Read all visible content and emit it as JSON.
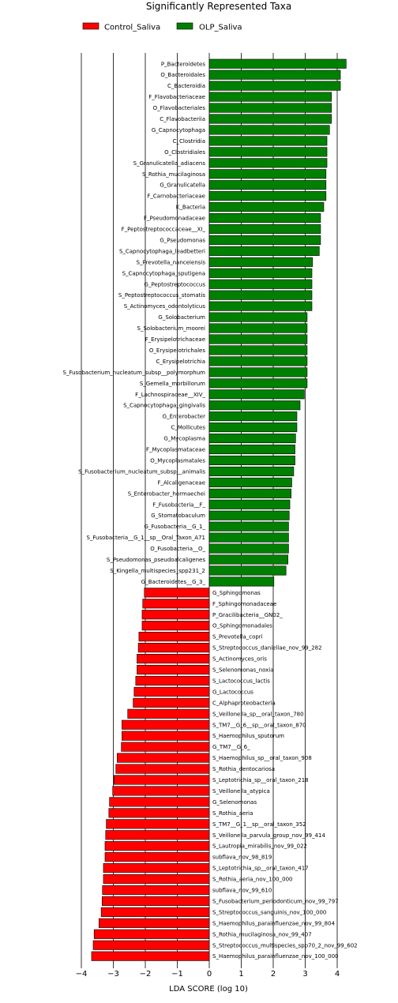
{
  "chart_data": {
    "type": "bar",
    "orientation": "horizontal",
    "title": "Significantly Represented Taxa",
    "xlabel": "LDA SCORE (log 10)",
    "xlim": [
      -4,
      4.4
    ],
    "xticks": [
      "−4",
      "−3",
      "−2",
      "−1",
      "0",
      "1",
      "2",
      "3",
      "4"
    ],
    "grid": "vertical",
    "legend_position": "top-left",
    "series": [
      {
        "name": "OLP_Saliva",
        "color": "#008000",
        "categories": [
          "P_Bacteroidetes",
          "O_Bacteroidales",
          "C_Bacteroidia",
          "F_Flavobacteriaceae",
          "O_Flavobacteriales",
          "C_Flavobacteriia",
          "G_Capnocytophaga",
          "C_Clostridia",
          "O_Clostridiales",
          "S_Granulicatella_adiacens",
          "S_Rothia_mucilaginosa",
          "G_Granulicatella",
          "F_Carnobacteriaceae",
          "K_Bacteria",
          "F_Pseudomonadaceae",
          "F_Peptostreptococcaceae__XI_",
          "G_Pseudomonas",
          "S_Capnocytophaga_leadbetteri",
          "S_Prevotella_nanceiensis",
          "S_Capnocytophaga_sputigena",
          "G_Peptostreptococcus",
          "S_Peptostreptococcus_stomatis",
          "S_Actinomyces_odontolyticus",
          "G_Solobacterium",
          "S_Solobacterium_moorei",
          "F_Erysipelotrichaceae",
          "O_Erysipelotrichales",
          "C_Erysipelotrichia",
          "S_Fusobacterium_nucleatum_subsp__polymorphum",
          "S_Gemella_morbillorum",
          "F_Lachnospiraceae__XIV_",
          "S_Capnocytophaga_gingivalis",
          "G_Enterobacter",
          "C_Mollicutes",
          "G_Mycoplasma",
          "F_Mycoplasmataceae",
          "O_Mycoplasmatales",
          "S_Fusobacterium_nucleatum_subsp__animalis",
          "F_Alcaligenaceae",
          "S_Enterobacter_hormaechei",
          "F_Fusobacteria__F_",
          "G_Stomatobaculum",
          "G_Fusobacteria__G_1_",
          "S_Fusobacteria__G_1__sp__Oral_Taxon_A71",
          "O_Fusobacteria__O_",
          "S_Pseudomonas_pseudoalcaligenes",
          "S_Kingella_multispecies_spp231_2",
          "G_Bacteroidetes__G_3_"
        ],
        "values": [
          4.28,
          4.1,
          4.1,
          3.82,
          3.82,
          3.82,
          3.76,
          3.68,
          3.68,
          3.68,
          3.65,
          3.65,
          3.65,
          3.58,
          3.48,
          3.48,
          3.48,
          3.44,
          3.23,
          3.21,
          3.21,
          3.21,
          3.21,
          3.06,
          3.06,
          3.06,
          3.06,
          3.06,
          3.06,
          3.06,
          2.97,
          2.84,
          2.74,
          2.74,
          2.7,
          2.68,
          2.68,
          2.64,
          2.58,
          2.56,
          2.52,
          2.5,
          2.48,
          2.48,
          2.48,
          2.46,
          2.4,
          2.02
        ]
      },
      {
        "name": "Control_Saliva",
        "color": "#ff0000",
        "categories": [
          "G_Sphingomonas",
          "F_Sphingomonadaceae",
          "P_Gracilibacteria__GN02_",
          "O_Sphingomonadales",
          "S_Prevotella_copri",
          "S_Streptococcus_danieliae_nov_99_282",
          "S_Actinomyces_oris",
          "S_Selenomonas_noxia",
          "S_Lactococcus_lactis",
          "G_Lactococcus",
          "C_Alphaproteobacteria",
          "S_Veillonella_sp__oral_taxon_780",
          "S_TM7__G_6__sp__oral_taxon_870",
          "S_Haemophilus_sputorum",
          "G_TM7__G_6_",
          "S_Haemophilus_sp__oral_taxon_908",
          "S_Rothia_dentocariosa",
          "S_Leptotrichia_sp__oral_taxon_218",
          "S_Veillonella_atypica",
          "G_Selenomonas",
          "S_Rothia_aeria",
          "S_TM7__G_1__sp__oral_taxon_352",
          "S_Veillonella_parvula_group_nov_99_414",
          "S_Lautropia_mirabilis_nov_99_022",
          "subflava_nov_98_819",
          "S_Leptotrichia_sp__oral_taxon_417",
          "S_Rothia_aeria_nov_100_000",
          "subflava_nov_99_610",
          "S_Fusobacterium_periodonticum_nov_99_797",
          "S_Streptococcus_sanguinis_nov_100_000",
          "S_Haemophilus_parainfluenzae_nov_99_804",
          "S_Rothia_mucilaginosa_nov_99_407",
          "S_Streptococcus_multispecies_spp70_2_nov_99_602",
          "S_Haemophilus_parainfluenzae_nov_100_000"
        ],
        "values": [
          -2.03,
          -2.08,
          -2.1,
          -2.1,
          -2.2,
          -2.22,
          -2.26,
          -2.26,
          -2.3,
          -2.35,
          -2.38,
          -2.55,
          -2.73,
          -2.73,
          -2.75,
          -2.88,
          -2.92,
          -2.98,
          -3.02,
          -3.12,
          -3.14,
          -3.22,
          -3.24,
          -3.26,
          -3.26,
          -3.31,
          -3.31,
          -3.34,
          -3.35,
          -3.38,
          -3.45,
          -3.6,
          -3.63,
          -3.68
        ]
      }
    ]
  }
}
